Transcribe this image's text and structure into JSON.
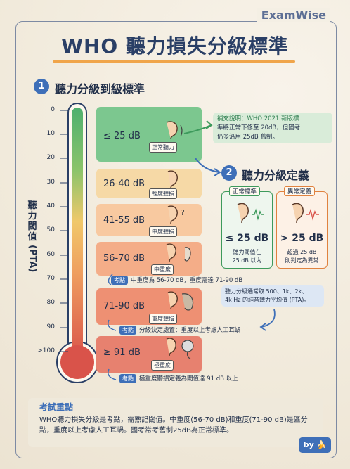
{
  "brand": "ExamWise",
  "title": "WHO 聽力損失分級標準",
  "section1": {
    "num": "1",
    "title": "聽力分級到級標準"
  },
  "section2": {
    "num": "2",
    "title": "聽力分級定義"
  },
  "y_axis_label": [
    "聽",
    "力",
    "閾",
    "值",
    "(PTA)"
  ],
  "ticks": [
    "0",
    "10",
    "20",
    "30",
    "40",
    "50",
    "60",
    "70",
    "80",
    "90",
    ">100"
  ],
  "bands": [
    {
      "db": "≤ 25 dB",
      "tag": "正常聽力",
      "color": "#5dbb7d"
    },
    {
      "db": "26-40 dB",
      "tag": "輕度聽損",
      "color": "#f6d9a6"
    },
    {
      "db": "41-55 dB",
      "tag": "中度聽損",
      "color": "#f7c493"
    },
    {
      "db": "56-70 dB",
      "tag": "中重度",
      "color": "#f4a880"
    },
    {
      "db": "71-90 dB",
      "tag": "重度聽損",
      "color": "#ec8b6e"
    },
    {
      "db": "≥ 91 dB",
      "tag": "極重度",
      "color": "#e77b6f"
    }
  ],
  "notes": {
    "n1_tag": "考點",
    "n1_text": "中重度為 56-70 dB，重度需達 71-90 dB",
    "n2_tag": "考點",
    "n2_text": "分級決定處置：重度以上考慮人工耳蝸",
    "n3_tag": "考點",
    "n3_text": "極重度聽損定義為閾值達 91 dB 以上"
  },
  "supplement": {
    "line1": "補充說明：WHO 2021 新版標",
    "line2": "準將正常下修至 20dB，但國考",
    "line3": "仍多沿用 25dB 舊制。"
  },
  "card_normal": {
    "header": "正常標準",
    "value": "≤ 25 dB",
    "line1": "聽力閾值在",
    "line2": "25 dB 以內"
  },
  "card_abnormal": {
    "header": "異常定義",
    "value": "> 25 dB",
    "line1": "超過 25 dB",
    "line2": "則判定為異常"
  },
  "pta_note": {
    "line1": "聽力分級通常取 500、1k、2k、",
    "line2": "4k Hz 的純音聽力平均值 (PTA)。"
  },
  "exam": {
    "title": "考試重點",
    "body": "WHO聽力損失分級是考點，需熟記閾值。中重度(56-70 dB)和重度(71-90 dB)是區分點，重度以上考慮人工耳蝸。國考常考舊制25dB為正常標準。"
  },
  "byline": "by 🍌",
  "colors": {
    "accent": "#3e6fb8",
    "title": "#2a3f66",
    "underline": "#f0a54a"
  }
}
